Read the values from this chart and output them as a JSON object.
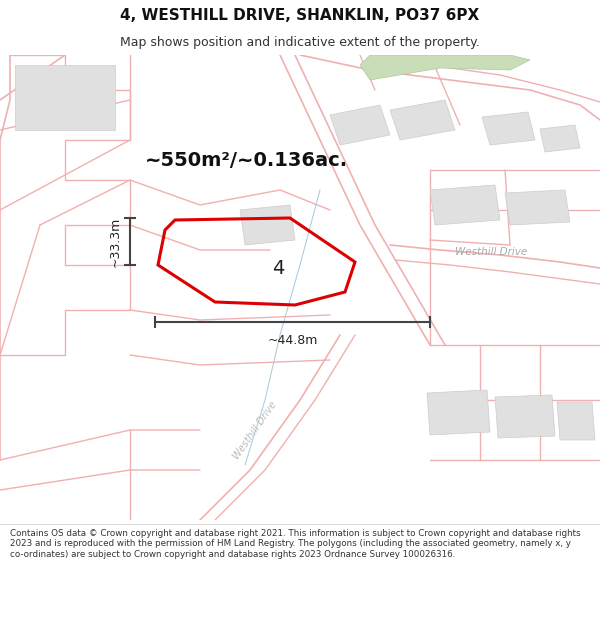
{
  "title": "4, WESTHILL DRIVE, SHANKLIN, PO37 6PX",
  "subtitle": "Map shows position and indicative extent of the property.",
  "footer": "Contains OS data © Crown copyright and database right 2021. This information is subject to Crown copyright and database rights 2023 and is reproduced with the permission of HM Land Registry. The polygons (including the associated geometry, namely x, y co-ordinates) are subject to Crown copyright and database rights 2023 Ordnance Survey 100026316.",
  "area_label": "~550m²/~0.136ac.",
  "width_label": "~44.8m",
  "height_label": "~33.3m",
  "plot_number": "4",
  "map_bg": "#fafafa",
  "road_color": "#f0b0b0",
  "building_color": "#e0e0e0",
  "building_edge": "#cccccc",
  "red_color": "#dd0000",
  "dim_color": "#444444",
  "text_color": "#111111",
  "road_label_color": "#999999",
  "green_color": "#c8ddb8"
}
